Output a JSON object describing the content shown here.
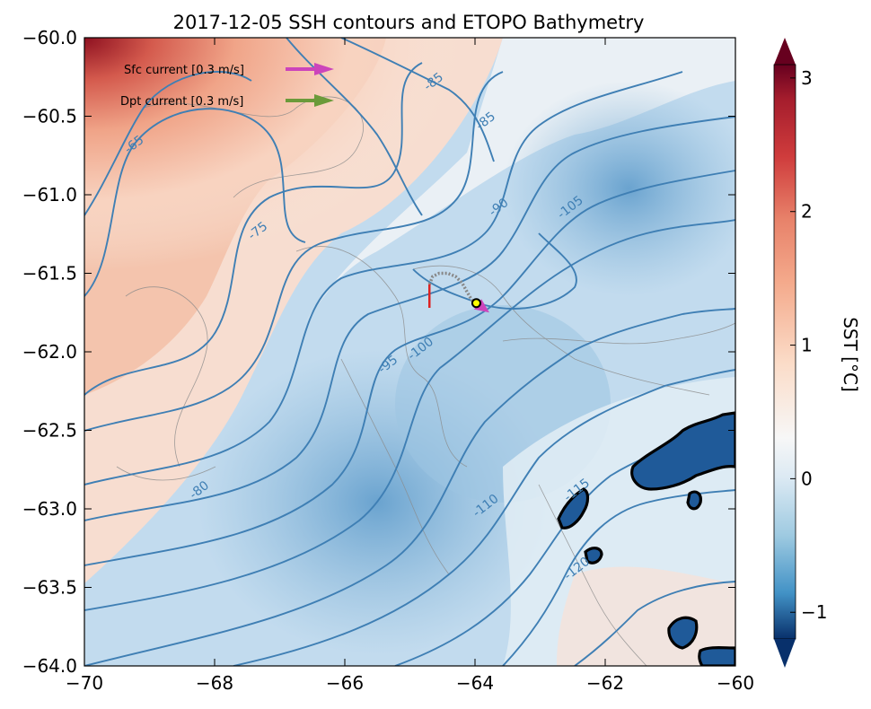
{
  "chart_data": {
    "type": "heatmap",
    "title": "2017-12-05 SSH contours and ETOPO Bathymetry",
    "xlabel": "",
    "ylabel": "",
    "xlim": [
      -70,
      -60
    ],
    "ylim": [
      -64,
      -60
    ],
    "x_ticks": [
      "−70",
      "−68",
      "−66",
      "−64",
      "−62",
      "−60"
    ],
    "y_ticks": [
      "−60.0",
      "−60.5",
      "−61.0",
      "−61.5",
      "−62.0",
      "−62.5",
      "−63.0",
      "−63.5",
      "−64.0"
    ],
    "colorbar": {
      "label": "SST [°C]",
      "range": [
        -1.2,
        3.1
      ],
      "ticks": [
        "3",
        "2",
        "1",
        "0",
        "−1"
      ]
    },
    "ssh_contour_labels": [
      {
        "text": "-65",
        "x": -69.2,
        "y": -60.7
      },
      {
        "text": "-75",
        "x": -67.3,
        "y": -61.25
      },
      {
        "text": "-80",
        "x": -68.2,
        "y": -62.9
      },
      {
        "text": "-85",
        "x": -64.6,
        "y": -60.3
      },
      {
        "text": "-85",
        "x": -63.8,
        "y": -60.55
      },
      {
        "text": "-90",
        "x": -63.6,
        "y": -61.1
      },
      {
        "text": "-95",
        "x": -65.3,
        "y": -62.1
      },
      {
        "text": "-100",
        "x": -64.8,
        "y": -62.0
      },
      {
        "text": "-105",
        "x": -62.5,
        "y": -61.1
      },
      {
        "text": "-110",
        "x": -63.8,
        "y": -63.0
      },
      {
        "text": "-115",
        "x": -62.4,
        "y": -62.9
      },
      {
        "text": "-120",
        "x": -62.4,
        "y": -63.4
      }
    ],
    "legend": [
      {
        "label": "Sfc current [0.3 m/s]",
        "color": "#cc44bb"
      },
      {
        "label": "Dpt current [0.3 m/s]",
        "color": "#6b9a3a"
      }
    ],
    "track": {
      "color": "#888888",
      "points": [
        [
          -64.7,
          -61.57
        ],
        [
          -64.65,
          -61.52
        ],
        [
          -64.55,
          -61.5
        ],
        [
          -64.42,
          -61.5
        ],
        [
          -64.3,
          -61.52
        ],
        [
          -64.2,
          -61.56
        ],
        [
          -64.12,
          -61.62
        ],
        [
          -64.05,
          -61.67
        ],
        [
          -63.98,
          -61.69
        ]
      ]
    },
    "drifter_position": {
      "x": -63.98,
      "y": -61.69,
      "color": "#ffff00"
    },
    "red_bar": {
      "x": -64.7,
      "y_top": -61.57,
      "y_bottom": -61.72,
      "color": "#dd2222"
    },
    "surface_current_vector": {
      "x0": -63.98,
      "y0": -61.69,
      "x1": -63.78,
      "y1": -61.75,
      "color": "#cc44bb"
    }
  }
}
